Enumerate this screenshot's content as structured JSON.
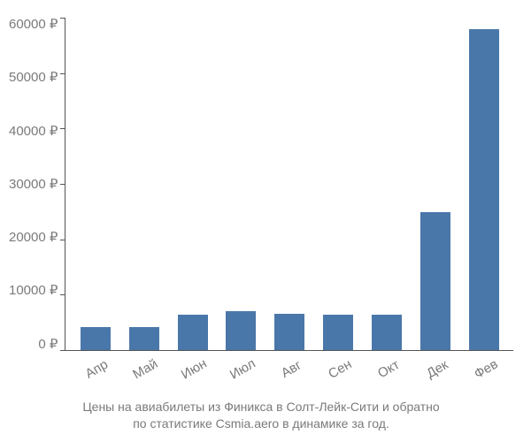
{
  "chart": {
    "type": "bar",
    "categories": [
      "Апр",
      "Май",
      "Июн",
      "Июл",
      "Авг",
      "Сен",
      "Окт",
      "Дек",
      "Фев"
    ],
    "values": [
      4200,
      4200,
      6300,
      7000,
      6500,
      6300,
      6300,
      24800,
      58000
    ],
    "bar_color": "#4a77a9",
    "ylim": [
      0,
      60000
    ],
    "yticks": [
      0,
      10000,
      20000,
      30000,
      40000,
      50000,
      60000
    ],
    "ytick_suffix": " ₽",
    "x_label_rotation": -30,
    "axis_fontsize": 15,
    "axis_text_color": "#7a7a7a",
    "axis_line_color": "#555555",
    "background_color": "#ffffff",
    "bar_width": 0.62
  },
  "caption": {
    "line1": "Цены на авиабилеты из Финикса в Солт-Лейк-Сити и обратно",
    "line2": "по статистике Csmia.aero в динамике за год.",
    "fontsize": 14,
    "color": "#7a7a7a"
  }
}
